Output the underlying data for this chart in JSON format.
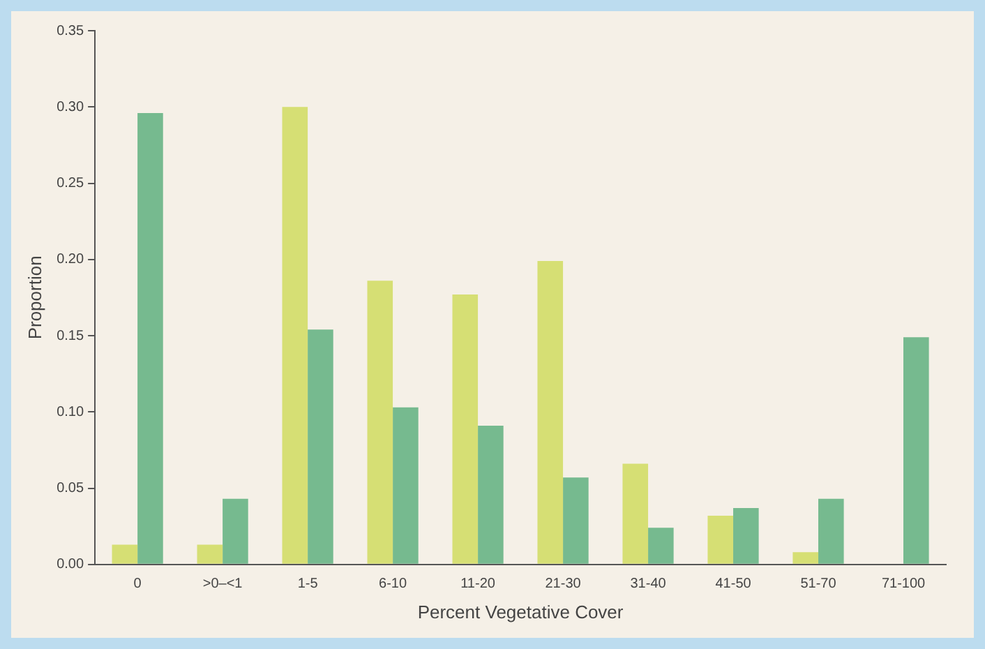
{
  "chart_data": {
    "type": "bar",
    "xlabel": "Percent Vegetative Cover",
    "ylabel": "Proportion",
    "categories": [
      "0",
      ">0–<1",
      "1-5",
      "6-10",
      "11-20",
      "21-30",
      "31-40",
      "41-50",
      "51-70",
      "71-100"
    ],
    "series": [
      {
        "color": "#d6df74",
        "values": [
          0.013,
          0.013,
          0.3,
          0.186,
          0.177,
          0.199,
          0.066,
          0.032,
          0.008,
          0
        ]
      },
      {
        "color": "#76ba8f",
        "values": [
          0.296,
          0.043,
          0.154,
          0.103,
          0.091,
          0.057,
          0.024,
          0.037,
          0.043,
          0.149
        ]
      }
    ],
    "ylim": [
      0,
      0.35
    ],
    "yticks": [
      {
        "value": 0,
        "label": "0.00"
      },
      {
        "value": 0.05,
        "label": "0.05"
      },
      {
        "value": 0.1,
        "label": "0.10"
      },
      {
        "value": 0.15,
        "label": "0.15"
      },
      {
        "value": 0.2,
        "label": "0.20"
      },
      {
        "value": 0.25,
        "label": "0.25"
      },
      {
        "value": 0.3,
        "label": "0.30"
      },
      {
        "value": 0.35,
        "label": "0.35"
      }
    ],
    "grid": false,
    "legend": false
  }
}
